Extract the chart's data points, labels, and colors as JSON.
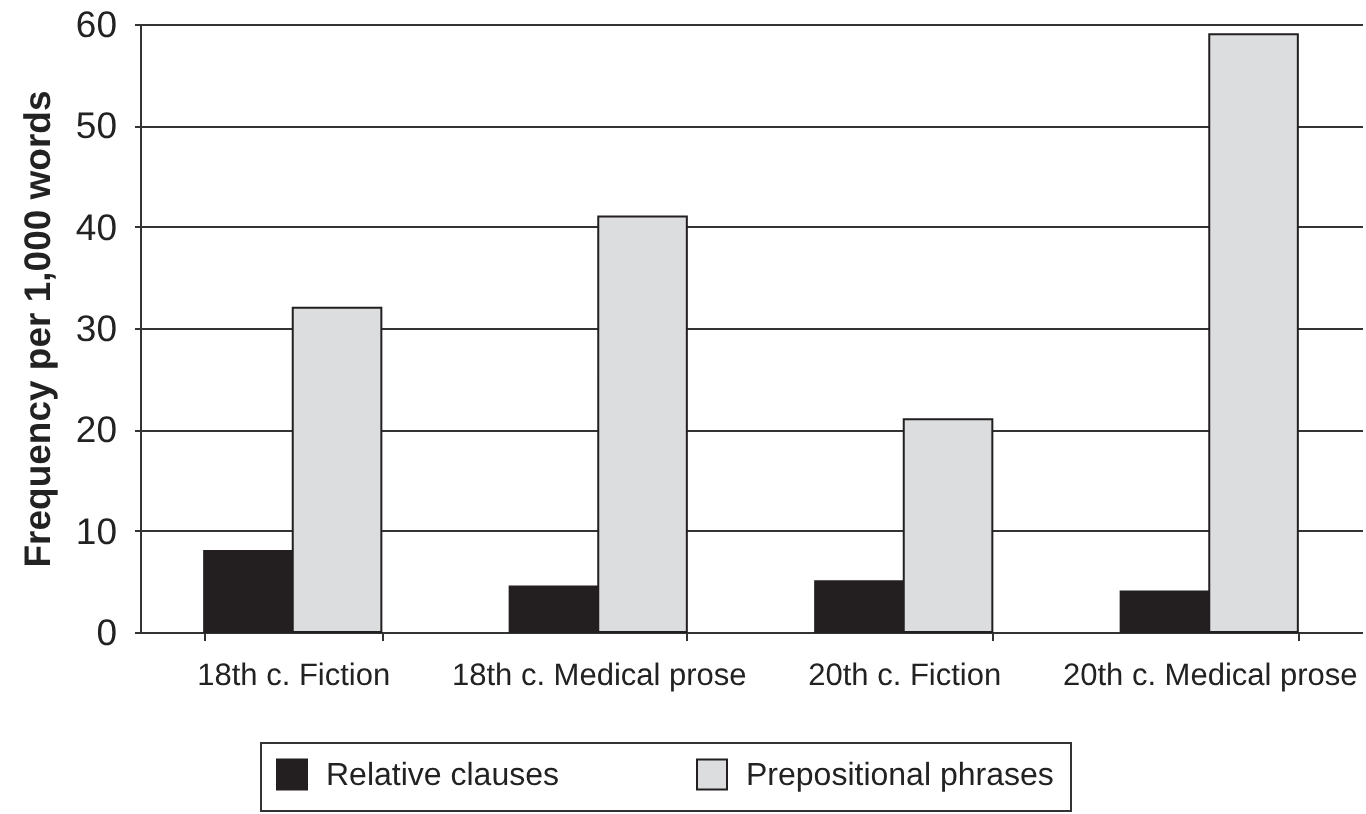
{
  "chart_data": {
    "type": "bar",
    "ylabel": "Frequency per 1,000 words",
    "categories": [
      "18th c. Fiction",
      "18th c. Medical prose",
      "20th c. Fiction",
      "20th c. Medical prose"
    ],
    "series": [
      {
        "name": "Relative clauses",
        "color": "#231f20",
        "values": [
          8,
          4.5,
          5,
          4
        ]
      },
      {
        "name": "Prepositional phrases",
        "color": "#dcdddf",
        "values": [
          32,
          41,
          21,
          59
        ]
      }
    ],
    "ylim": [
      0,
      60
    ],
    "yticks": [
      0,
      10,
      20,
      30,
      40,
      50,
      60
    ],
    "grid": "y",
    "legend": "bottom"
  }
}
